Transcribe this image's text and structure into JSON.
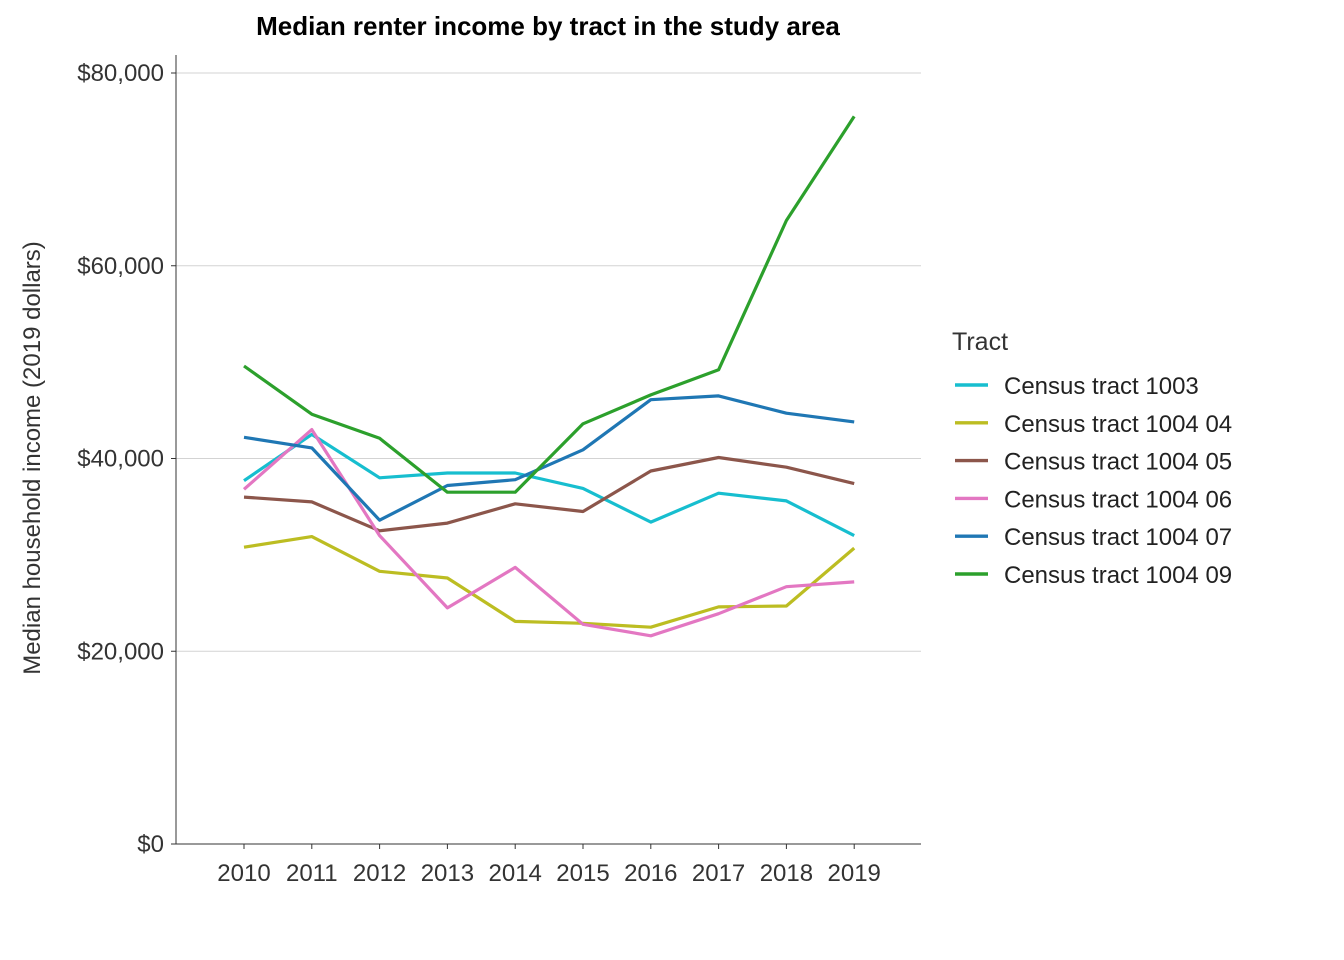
{
  "chart_data": {
    "type": "line",
    "title": "Median renter income by tract in the study area",
    "xlabel": "",
    "ylabel": "Median household income (2019 dollars)",
    "x": [
      "2010",
      "2011",
      "2012",
      "2013",
      "2014",
      "2015",
      "2016",
      "2017",
      "2018",
      "2019"
    ],
    "ylim": [
      0,
      80000
    ],
    "yticks": [
      0,
      20000,
      40000,
      60000,
      80000
    ],
    "ytick_labels": [
      "$0",
      "$20,000",
      "$40,000",
      "$60,000",
      "$80,000"
    ],
    "grid": true,
    "legend": {
      "title": "Tract",
      "position": "right"
    },
    "series": [
      {
        "name": "Census tract 1003",
        "color": "#17becf",
        "values": [
          37700,
          42500,
          38000,
          38500,
          38500,
          36900,
          33400,
          36400,
          35600,
          32000
        ]
      },
      {
        "name": "Census tract 1004 04",
        "color": "#bcbd22",
        "values": [
          30800,
          31900,
          28300,
          27600,
          23100,
          22900,
          22500,
          24600,
          24700,
          30700
        ]
      },
      {
        "name": "Census tract 1004 05",
        "color": "#8c564b",
        "values": [
          36000,
          35500,
          32500,
          33300,
          35300,
          34500,
          38700,
          40100,
          39100,
          37400
        ]
      },
      {
        "name": "Census tract 1004 06",
        "color": "#e377c2",
        "values": [
          36800,
          43000,
          32000,
          24500,
          28700,
          22800,
          21600,
          23900,
          26700,
          27200
        ]
      },
      {
        "name": "Census tract 1004 07",
        "color": "#1f77b4",
        "values": [
          42200,
          41100,
          33600,
          37200,
          37800,
          40900,
          46100,
          46500,
          44700,
          43800
        ]
      },
      {
        "name": "Census tract 1004 09",
        "color": "#2ca02c",
        "values": [
          49600,
          44600,
          42100,
          36500,
          36500,
          43600,
          46600,
          49200,
          64700,
          75500
        ]
      }
    ]
  }
}
